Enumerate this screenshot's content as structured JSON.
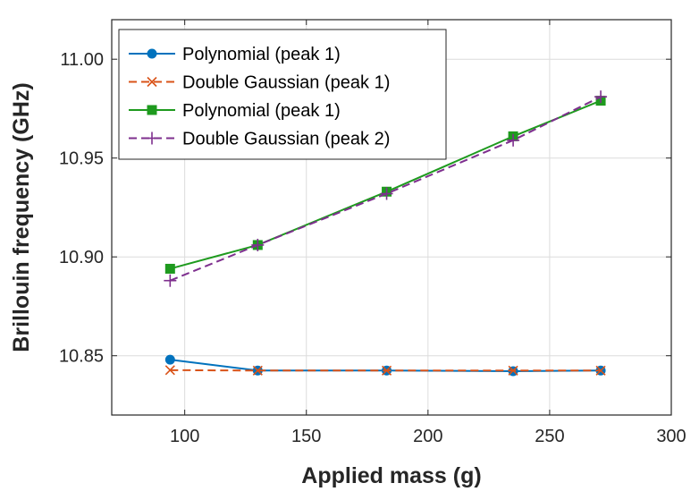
{
  "chart_data": {
    "type": "line",
    "title": "",
    "xlabel": "Applied mass (g)",
    "ylabel": "Brillouin frequency (GHz)",
    "xlim": [
      70,
      300
    ],
    "ylim": [
      10.82,
      11.02
    ],
    "x_ticks": [
      100,
      150,
      200,
      250,
      300
    ],
    "y_ticks": [
      10.85,
      10.9,
      10.95,
      11.0
    ],
    "x_tick_labels": [
      "100",
      "150",
      "200",
      "250",
      "300"
    ],
    "y_tick_labels": [
      "10.85",
      "10.90",
      "10.95",
      "11.00"
    ],
    "grid": true,
    "legend_position": "top-left",
    "x": [
      94,
      130,
      183,
      235,
      271
    ],
    "series": [
      {
        "name": "Polynomial (peak 1)",
        "values": [
          10.848,
          10.8425,
          10.8425,
          10.8422,
          10.8425
        ],
        "color": "#0072BD",
        "dash": "solid",
        "marker": "circle"
      },
      {
        "name": "Double Gaussian (peak 1)",
        "values": [
          10.8427,
          10.8425,
          10.8425,
          10.8425,
          10.8425
        ],
        "color": "#D95319",
        "dash": "dashed",
        "marker": "x"
      },
      {
        "name": "Polynomial (peak 1)",
        "values": [
          10.894,
          10.906,
          10.933,
          10.961,
          10.979
        ],
        "color": "#1E9A1E",
        "dash": "solid",
        "marker": "square"
      },
      {
        "name": "Double Gaussian (peak 2)",
        "values": [
          10.888,
          10.906,
          10.932,
          10.959,
          10.981
        ],
        "color": "#7E2F8E",
        "dash": "dashed",
        "marker": "plus"
      }
    ]
  }
}
